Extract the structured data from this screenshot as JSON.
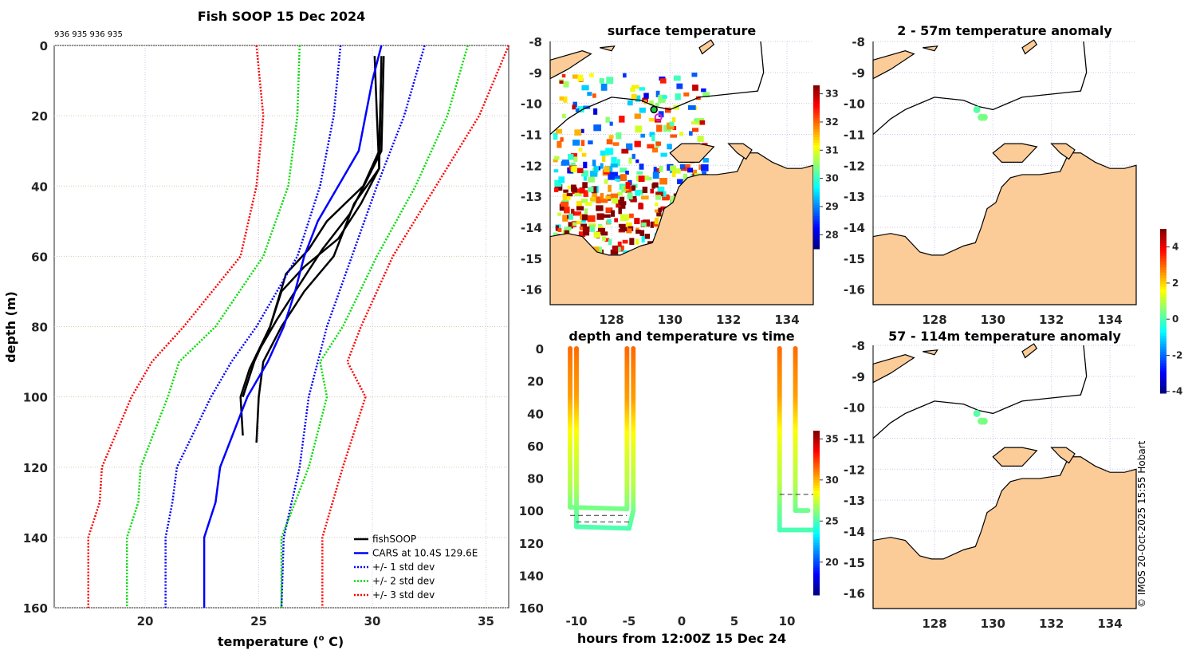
{
  "colors": {
    "land": "#fbcb98",
    "cars": "#0000ff",
    "std1": "#0000ff",
    "std2": "#00dd00",
    "std3": "#ff0000",
    "fish": "#000000",
    "dot": "#1ec83a"
  },
  "chart_data": [
    {
      "type": "line",
      "title": "Fish SOOP 15 Dec 2024",
      "subtitle": "936 935 936 935",
      "xlabel": "temperature (",
      "xlabel_sup": "o",
      "xlabel_end": " C)",
      "ylabel": "depth (m)",
      "xlim": [
        16,
        36
      ],
      "ylim": [
        160,
        0
      ],
      "xticks": [
        20,
        25,
        30,
        35
      ],
      "yticks": [
        0,
        20,
        40,
        60,
        80,
        100,
        120,
        140,
        160
      ],
      "legend": [
        "fishSOOP",
        "CARS at 10.4S 129.6E",
        "+/- 1 std dev",
        "+/- 2 std dev",
        "+/- 3 std dev"
      ],
      "legend_position": "bottom-right",
      "series": [
        {
          "name": "fishSOOP",
          "kind": "fish",
          "points": [
            [
              30.1,
              3
            ],
            [
              30.2,
              20
            ],
            [
              30.3,
              35
            ],
            [
              29.5,
              45
            ],
            [
              28.5,
              55
            ],
            [
              27.0,
              63
            ],
            [
              26.0,
              70
            ],
            [
              25.5,
              80
            ],
            [
              24.8,
              90
            ],
            [
              24.3,
              100
            ]
          ]
        },
        {
          "name": "fishSOOP",
          "kind": "fish",
          "points": [
            [
              30.4,
              5
            ],
            [
              30.3,
              30
            ],
            [
              29.6,
              40
            ],
            [
              28.0,
              50
            ],
            [
              27.2,
              58
            ],
            [
              26.2,
              65
            ],
            [
              25.5,
              80
            ],
            [
              24.6,
              92
            ],
            [
              24.2,
              100
            ],
            [
              24.3,
              111
            ]
          ]
        },
        {
          "name": "fishSOOP",
          "kind": "fish",
          "points": [
            [
              30.4,
              3
            ],
            [
              30.3,
              35
            ],
            [
              29.2,
              45
            ],
            [
              28.3,
              60
            ],
            [
              27.0,
              70
            ],
            [
              26.0,
              80
            ],
            [
              25.2,
              90
            ],
            [
              25.0,
              100
            ],
            [
              24.9,
              113
            ]
          ]
        },
        {
          "name": "fishSOOP",
          "kind": "fish",
          "points": [
            [
              30.5,
              3
            ],
            [
              30.4,
              30
            ],
            [
              29.0,
              48
            ],
            [
              27.8,
              58
            ],
            [
              26.8,
              68
            ],
            [
              25.8,
              78
            ],
            [
              24.9,
              88
            ],
            [
              24.5,
              96
            ],
            [
              24.3,
              100
            ]
          ]
        },
        {
          "name": "CARS",
          "kind": "cars",
          "points": [
            [
              30.4,
              0
            ],
            [
              30.0,
              10
            ],
            [
              29.7,
              20
            ],
            [
              29.4,
              30
            ],
            [
              28.5,
              40
            ],
            [
              27.6,
              50
            ],
            [
              27.0,
              60
            ],
            [
              26.6,
              70
            ],
            [
              26.1,
              80
            ],
            [
              25.4,
              90
            ],
            [
              24.5,
              100
            ],
            [
              23.9,
              110
            ],
            [
              23.3,
              120
            ],
            [
              23.1,
              130
            ],
            [
              22.6,
              140
            ],
            [
              22.6,
              160
            ]
          ]
        },
        {
          "name": "-1 std",
          "kind": "std1",
          "points": [
            [
              28.6,
              0
            ],
            [
              28.3,
              20
            ],
            [
              27.7,
              40
            ],
            [
              26.7,
              60
            ],
            [
              24.9,
              80
            ],
            [
              23.8,
              90
            ],
            [
              22.9,
              100
            ],
            [
              21.4,
              120
            ],
            [
              21.2,
              130
            ],
            [
              20.9,
              140
            ],
            [
              20.9,
              160
            ]
          ]
        },
        {
          "name": "+1 std",
          "kind": "std1",
          "points": [
            [
              32.3,
              0
            ],
            [
              31.4,
              20
            ],
            [
              30.2,
              40
            ],
            [
              29.1,
              60
            ],
            [
              28.0,
              80
            ],
            [
              27.2,
              100
            ],
            [
              26.8,
              120
            ],
            [
              26.1,
              140
            ],
            [
              26.0,
              160
            ]
          ]
        },
        {
          "name": "-2 std",
          "kind": "std2",
          "points": [
            [
              26.8,
              0
            ],
            [
              26.7,
              20
            ],
            [
              26.3,
              40
            ],
            [
              25.2,
              60
            ],
            [
              23.1,
              80
            ],
            [
              21.5,
              90
            ],
            [
              21.0,
              100
            ],
            [
              19.8,
              120
            ],
            [
              19.7,
              130
            ],
            [
              19.2,
              140
            ],
            [
              19.2,
              160
            ]
          ]
        },
        {
          "name": "+2 std",
          "kind": "std2",
          "points": [
            [
              34.2,
              0
            ],
            [
              33.3,
              20
            ],
            [
              31.9,
              40
            ],
            [
              30.2,
              60
            ],
            [
              28.7,
              80
            ],
            [
              27.7,
              90
            ],
            [
              28.0,
              100
            ],
            [
              27.2,
              120
            ],
            [
              26.0,
              140
            ],
            [
              26.0,
              160
            ]
          ]
        },
        {
          "name": "-3 std",
          "kind": "std3",
          "points": [
            [
              24.9,
              0
            ],
            [
              25.2,
              20
            ],
            [
              24.9,
              40
            ],
            [
              24.2,
              60
            ],
            [
              21.7,
              80
            ],
            [
              20.3,
              90
            ],
            [
              19.4,
              100
            ],
            [
              18.1,
              120
            ],
            [
              18.0,
              130
            ],
            [
              17.5,
              140
            ],
            [
              17.5,
              160
            ]
          ]
        },
        {
          "name": "+3 std",
          "kind": "std3",
          "points": [
            [
              36.0,
              0
            ],
            [
              34.7,
              20
            ],
            [
              32.8,
              40
            ],
            [
              30.9,
              60
            ],
            [
              29.5,
              80
            ],
            [
              28.9,
              90
            ],
            [
              29.7,
              100
            ],
            [
              28.7,
              120
            ],
            [
              27.8,
              140
            ],
            [
              27.8,
              160
            ]
          ]
        }
      ]
    },
    {
      "type": "heatmap",
      "title": "surface temperature",
      "xticks": [
        128,
        130,
        132,
        134
      ],
      "yticks": [
        -8,
        -9,
        -10,
        -11,
        -12,
        -13,
        -14,
        -15,
        -16
      ],
      "colorbar_ticks": [
        28,
        29,
        30,
        31,
        32,
        33
      ],
      "colorbar_range": [
        27.5,
        33.3
      ]
    },
    {
      "type": "scatter",
      "title": "depth and temperature vs time",
      "xlabel": "hours from 12:00Z 15 Dec 24",
      "xticks": [
        -10,
        -5,
        0,
        5,
        10
      ],
      "yticks": [
        0,
        20,
        40,
        60,
        80,
        100,
        120,
        140,
        160
      ],
      "xlim": [
        -12.5,
        12.5
      ],
      "ylim": [
        160,
        0
      ],
      "colorbar_ticks": [
        20,
        25,
        30,
        35
      ],
      "colorbar_range": [
        16,
        36
      ],
      "tracks": [
        [
          [
            -10.6,
            0
          ],
          [
            -10.6,
            98
          ],
          [
            -5.2,
            99
          ],
          [
            -5.2,
            0
          ]
        ],
        [
          [
            -10.0,
            0
          ],
          [
            -10.0,
            110
          ],
          [
            -5.0,
            111
          ],
          [
            -4.6,
            100
          ],
          [
            -4.6,
            0
          ]
        ],
        [
          [
            9.3,
            0
          ],
          [
            9.3,
            112
          ],
          [
            12.5,
            112
          ]
        ],
        [
          [
            10.8,
            0
          ],
          [
            10.8,
            100
          ],
          [
            12.0,
            100
          ]
        ]
      ],
      "dashed": [
        [
          [
            -10.6,
            103
          ],
          [
            -5.2,
            103
          ]
        ],
        [
          [
            -10.0,
            107
          ],
          [
            -5.0,
            107
          ]
        ],
        [
          [
            9.3,
            90
          ],
          [
            12.5,
            90
          ]
        ]
      ]
    },
    {
      "type": "scatter",
      "title": "2 - 57m temperature anomaly",
      "xticks": [
        128,
        130,
        132,
        134
      ],
      "yticks": [
        -8,
        -9,
        -10,
        -11,
        -12,
        -13,
        -14,
        -15,
        -16
      ],
      "points": [
        [
          129.45,
          -10.2,
          0.1
        ],
        [
          129.6,
          -10.45,
          0.4
        ],
        [
          129.7,
          -10.45,
          0.4
        ]
      ]
    },
    {
      "type": "scatter",
      "title": "57 - 114m temperature anomaly",
      "xticks": [
        128,
        130,
        132,
        134
      ],
      "yticks": [
        -8,
        -9,
        -10,
        -11,
        -12,
        -13,
        -14,
        -15,
        -16
      ],
      "points": [
        [
          129.45,
          -10.2,
          0.1
        ],
        [
          129.6,
          -10.45,
          0.4
        ],
        [
          129.7,
          -10.45,
          0.4
        ]
      ],
      "colorbar_ticks": [
        -4,
        -2,
        0,
        2,
        4
      ],
      "colorbar_range": [
        -4.1,
        5
      ]
    }
  ],
  "copyright": "© IMOS 20-Oct-2025 15:55 Hobart"
}
